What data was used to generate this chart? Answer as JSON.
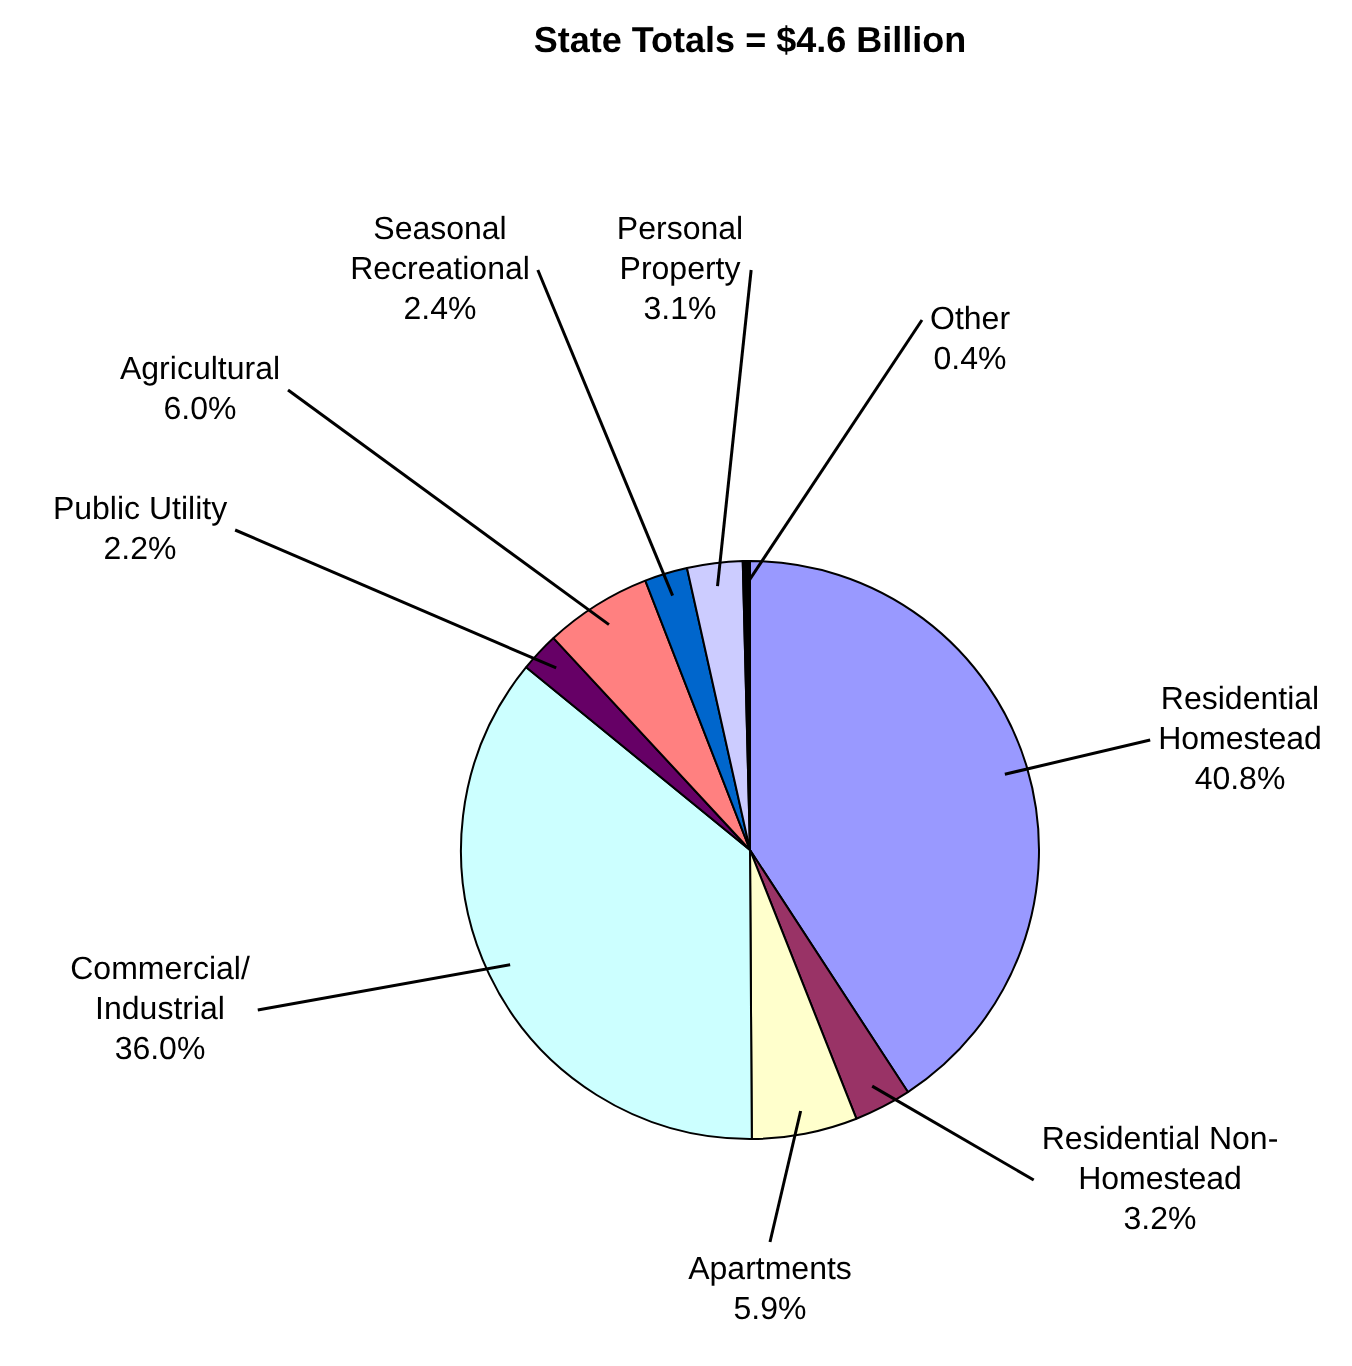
{
  "chart_data": {
    "type": "pie",
    "title": "State Totals = $4.6 Billion",
    "categories": [
      "Residential Homestead",
      "Residential Non-Homestead",
      "Apartments",
      "Commercial/Industrial",
      "Public Utility",
      "Agricultural",
      "Seasonal Recreational",
      "Personal Property",
      "Other"
    ],
    "values": [
      40.8,
      3.2,
      5.9,
      36.0,
      2.2,
      6.0,
      2.4,
      3.1,
      0.4
    ],
    "value_labels": [
      "40.8%",
      "3.2%",
      "5.9%",
      "36.0%",
      "2.2%",
      "6.0%",
      "2.4%",
      "3.1%",
      "0.4%"
    ],
    "colors": [
      "#9999ff",
      "#993366",
      "#ffffcc",
      "#ccffff",
      "#660066",
      "#ff8080",
      "#0066cc",
      "#ccccff",
      "#000000"
    ]
  }
}
